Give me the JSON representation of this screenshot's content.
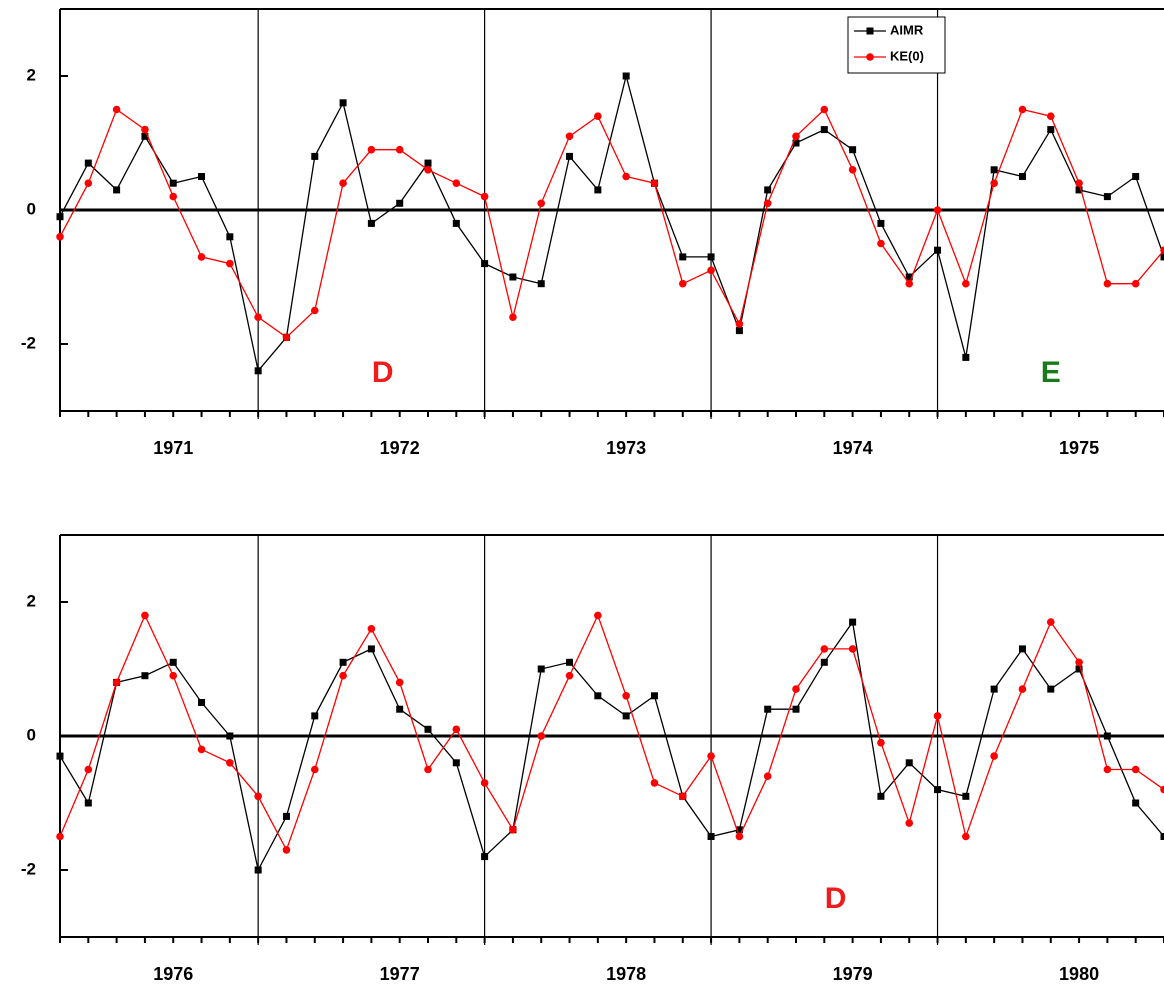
{
  "chart_data": [
    {
      "type": "line",
      "x": [
        1971.125,
        1971.25,
        1971.375,
        1971.5,
        1971.625,
        1971.75,
        1971.875,
        1972.0,
        1972.125,
        1972.25,
        1972.375,
        1972.5,
        1972.625,
        1972.75,
        1972.875,
        1973.0,
        1973.125,
        1973.25,
        1973.375,
        1973.5,
        1973.625,
        1973.75,
        1973.875,
        1974.0,
        1974.125,
        1974.25,
        1974.375,
        1974.5,
        1974.625,
        1974.75,
        1974.875,
        1975.0,
        1975.125,
        1975.25,
        1975.375,
        1975.5,
        1975.625,
        1975.75,
        1975.875,
        1976.0
      ],
      "series": [
        {
          "name": "AIMR",
          "color": "#000000",
          "marker": "square",
          "values": [
            -0.1,
            0.7,
            0.3,
            1.1,
            0.4,
            0.5,
            -0.4,
            -2.4,
            -1.9,
            0.8,
            1.6,
            -0.2,
            0.1,
            0.7,
            -0.2,
            -0.8,
            -1.0,
            -1.1,
            0.8,
            0.3,
            2.0,
            0.4,
            -0.7,
            -0.7,
            -1.8,
            0.3,
            1.0,
            1.2,
            0.9,
            -0.2,
            -1.0,
            -0.6,
            -2.2,
            0.6,
            0.5,
            1.2,
            0.3,
            0.2,
            0.5,
            -0.7
          ]
        },
        {
          "name": "KE(0)",
          "color": "#ff0000",
          "marker": "circle",
          "values": [
            -0.4,
            0.4,
            1.5,
            1.2,
            0.2,
            -0.7,
            -0.8,
            -1.6,
            -1.9,
            -1.5,
            0.4,
            0.9,
            0.9,
            0.6,
            0.4,
            0.2,
            -1.6,
            0.1,
            1.1,
            1.4,
            0.5,
            0.4,
            -1.1,
            -0.9,
            -1.7,
            0.1,
            1.1,
            1.5,
            0.6,
            -0.5,
            -1.1,
            0.0,
            -1.1,
            0.4,
            1.5,
            1.4,
            0.4,
            -1.1,
            -1.1,
            -0.6
          ]
        }
      ],
      "xlim": [
        1971.125,
        1976.0
      ],
      "xticks": [
        {
          "value": 1971.625,
          "label": "1971"
        },
        {
          "value": 1972.625,
          "label": "1972"
        },
        {
          "value": 1973.625,
          "label": "1973"
        },
        {
          "value": 1974.625,
          "label": "1974"
        },
        {
          "value": 1975.625,
          "label": "1975"
        }
      ],
      "vlines": [
        1972,
        1973,
        1974,
        1975
      ],
      "ylim": [
        -3,
        3
      ],
      "yticks": [
        -2,
        0,
        2
      ],
      "zero_line": true,
      "legend": "upper right",
      "annotations": [
        {
          "text": "D",
          "x": 1972.55,
          "y": -2.45,
          "color": "#ee1c1c"
        },
        {
          "text": "E",
          "x": 1975.5,
          "y": -2.45,
          "color": "#1a7a1a"
        }
      ]
    },
    {
      "type": "line",
      "x": [
        1976.125,
        1976.25,
        1976.375,
        1976.5,
        1976.625,
        1976.75,
        1976.875,
        1977.0,
        1977.125,
        1977.25,
        1977.375,
        1977.5,
        1977.625,
        1977.75,
        1977.875,
        1978.0,
        1978.125,
        1978.25,
        1978.375,
        1978.5,
        1978.625,
        1978.75,
        1978.875,
        1979.0,
        1979.125,
        1979.25,
        1979.375,
        1979.5,
        1979.625,
        1979.75,
        1979.875,
        1980.0,
        1980.125,
        1980.25,
        1980.375,
        1980.5,
        1980.625,
        1980.75,
        1980.875,
        1981.0
      ],
      "series": [
        {
          "name": "AIMR",
          "color": "#000000",
          "marker": "square",
          "values": [
            -0.3,
            -1.0,
            0.8,
            0.9,
            1.1,
            0.5,
            0.0,
            -2.0,
            -1.2,
            0.3,
            1.1,
            1.3,
            0.4,
            0.1,
            -0.4,
            -1.8,
            -1.4,
            1.0,
            1.1,
            0.6,
            0.3,
            0.6,
            -0.9,
            -1.5,
            -1.4,
            0.4,
            0.4,
            1.1,
            1.7,
            -0.9,
            -0.4,
            -0.8,
            -0.9,
            0.7,
            1.3,
            0.7,
            1.0,
            0.0,
            -1.0,
            -1.5
          ]
        },
        {
          "name": "KE(0)",
          "color": "#ff0000",
          "marker": "circle",
          "values": [
            -1.5,
            -0.5,
            0.8,
            1.8,
            0.9,
            -0.2,
            -0.4,
            -0.9,
            -1.7,
            -0.5,
            0.9,
            1.6,
            0.8,
            -0.5,
            0.1,
            -0.7,
            -1.4,
            0.0,
            0.9,
            1.8,
            0.6,
            -0.7,
            -0.9,
            -0.3,
            -1.5,
            -0.6,
            0.7,
            1.3,
            1.3,
            -0.1,
            -1.3,
            0.3,
            -1.5,
            -0.3,
            0.7,
            1.7,
            1.1,
            -0.5,
            -0.5,
            -0.8
          ]
        }
      ],
      "xlim": [
        1976.125,
        1981.0
      ],
      "xticks": [
        {
          "value": 1976.625,
          "label": "1976"
        },
        {
          "value": 1977.625,
          "label": "1977"
        },
        {
          "value": 1978.625,
          "label": "1978"
        },
        {
          "value": 1979.625,
          "label": "1979"
        },
        {
          "value": 1980.625,
          "label": "1980"
        }
      ],
      "vlines": [
        1977,
        1978,
        1979,
        1980
      ],
      "ylim": [
        -3,
        3
      ],
      "yticks": [
        -2,
        0,
        2
      ],
      "zero_line": true,
      "annotations": [
        {
          "text": "D",
          "x": 1979.55,
          "y": -2.45,
          "color": "#ee1c1c"
        }
      ]
    }
  ]
}
